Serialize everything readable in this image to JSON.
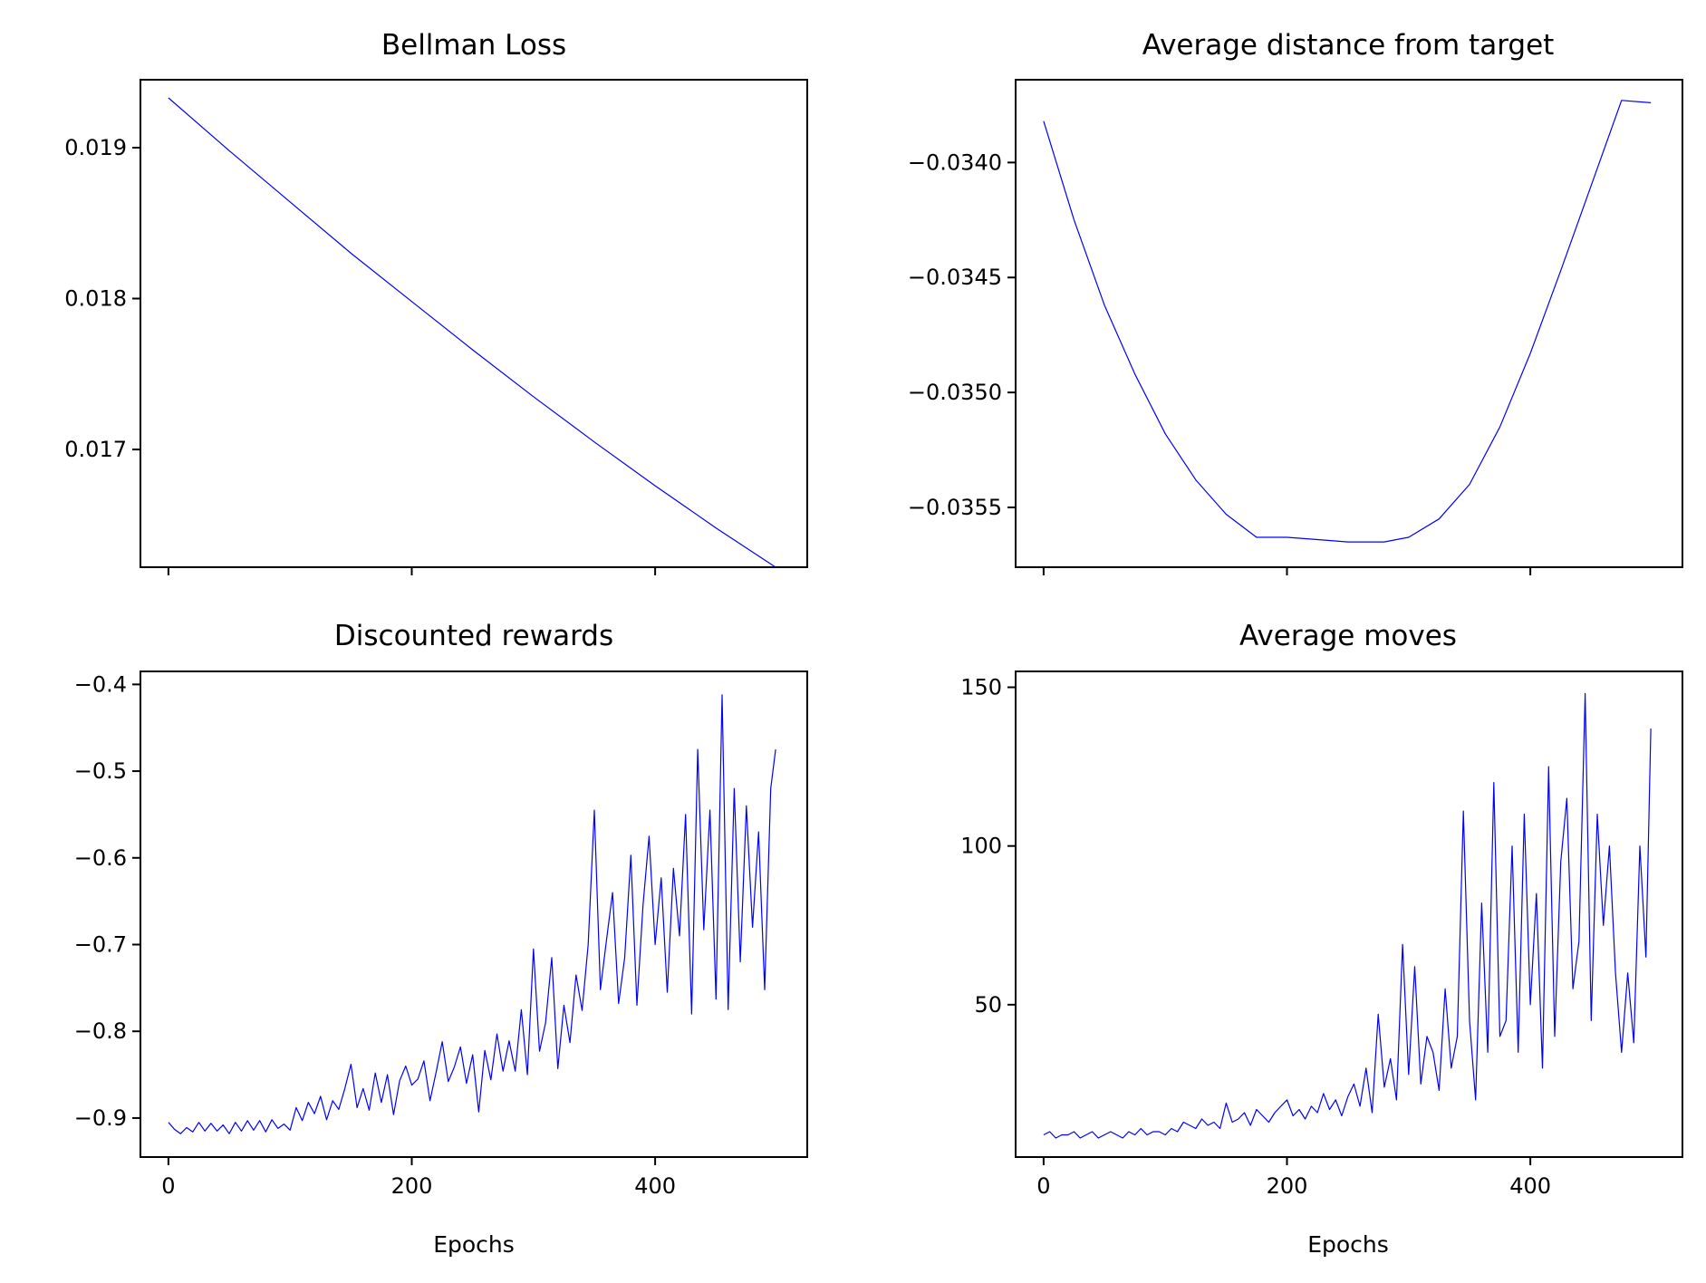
{
  "chart_data": [
    {
      "id": "bellman",
      "type": "line",
      "title": "Bellman Loss",
      "xlabel": "",
      "ylabel": "",
      "xlim": [
        -23,
        525
      ],
      "ylim": [
        0.01622,
        0.01945
      ],
      "xticks": [
        0,
        200,
        400
      ],
      "show_xtick_labels": false,
      "yticks": [
        0.017,
        0.018,
        0.019
      ],
      "ytick_labels": [
        "0.017",
        "0.018",
        "0.019"
      ],
      "color": "#0000ff",
      "grid": false,
      "series": [
        {
          "x": [
            0,
            50,
            100,
            150,
            200,
            250,
            300,
            350,
            400,
            450,
            499
          ],
          "values": [
            0.01933,
            0.01898,
            0.01864,
            0.0183,
            0.01798,
            0.01766,
            0.01735,
            0.01705,
            0.01676,
            0.01648,
            0.01622
          ]
        }
      ]
    },
    {
      "id": "distance",
      "type": "line",
      "title": "Average distance from target",
      "xlabel": "",
      "ylabel": "",
      "xlim": [
        -23,
        525
      ],
      "ylim": [
        -0.03576,
        -0.03364
      ],
      "xticks": [
        0,
        200,
        400
      ],
      "show_xtick_labels": false,
      "yticks": [
        -0.034,
        -0.0345,
        -0.035,
        -0.0355
      ],
      "ytick_labels": [
        "−0.0340",
        "−0.0345",
        "−0.0350",
        "−0.0355"
      ],
      "color": "#0000ff",
      "grid": false,
      "series": [
        {
          "x": [
            0,
            25,
            50,
            75,
            100,
            125,
            150,
            175,
            200,
            225,
            250,
            260,
            270,
            280,
            290,
            300,
            325,
            350,
            375,
            400,
            425,
            450,
            475,
            499
          ],
          "values": [
            -0.03382,
            -0.03425,
            -0.03462,
            -0.03492,
            -0.03518,
            -0.03538,
            -0.03553,
            -0.03563,
            -0.03563,
            -0.03564,
            -0.03565,
            -0.03565,
            -0.03565,
            -0.03565,
            -0.03564,
            -0.03563,
            -0.03555,
            -0.0354,
            -0.03515,
            -0.03483,
            -0.03447,
            -0.0341,
            -0.03373,
            -0.03374
          ]
        }
      ]
    },
    {
      "id": "rewards",
      "type": "line",
      "title": "Discounted rewards",
      "xlabel": "Epochs",
      "ylabel": "",
      "xlim": [
        -23,
        525
      ],
      "ylim": [
        -0.945,
        -0.385
      ],
      "xticks": [
        0,
        200,
        400
      ],
      "xtick_labels": [
        "0",
        "200",
        "400"
      ],
      "show_xtick_labels": true,
      "yticks": [
        -0.4,
        -0.5,
        -0.6,
        -0.7,
        -0.8,
        -0.9
      ],
      "ytick_labels": [
        "−0.4",
        "−0.5",
        "−0.6",
        "−0.7",
        "−0.8",
        "−0.9"
      ],
      "color": "#0000ff",
      "grid": false,
      "series": [
        {
          "x": [
            0,
            5,
            10,
            15,
            20,
            25,
            30,
            35,
            40,
            45,
            50,
            55,
            60,
            65,
            70,
            75,
            80,
            85,
            90,
            95,
            100,
            105,
            110,
            115,
            120,
            125,
            130,
            135,
            140,
            145,
            150,
            155,
            160,
            165,
            170,
            175,
            180,
            185,
            190,
            195,
            200,
            205,
            210,
            215,
            220,
            225,
            230,
            235,
            240,
            245,
            250,
            255,
            260,
            265,
            270,
            275,
            280,
            285,
            290,
            295,
            300,
            305,
            310,
            315,
            320,
            325,
            330,
            335,
            340,
            345,
            350,
            355,
            360,
            365,
            370,
            375,
            380,
            385,
            390,
            395,
            400,
            405,
            410,
            415,
            420,
            425,
            430,
            435,
            440,
            445,
            450,
            455,
            460,
            465,
            470,
            475,
            480,
            485,
            490,
            495,
            499
          ],
          "values": [
            -0.905,
            -0.913,
            -0.918,
            -0.911,
            -0.916,
            -0.905,
            -0.915,
            -0.906,
            -0.915,
            -0.908,
            -0.918,
            -0.905,
            -0.915,
            -0.903,
            -0.914,
            -0.903,
            -0.916,
            -0.902,
            -0.912,
            -0.907,
            -0.914,
            -0.888,
            -0.903,
            -0.882,
            -0.895,
            -0.875,
            -0.902,
            -0.88,
            -0.89,
            -0.866,
            -0.838,
            -0.888,
            -0.866,
            -0.891,
            -0.848,
            -0.882,
            -0.85,
            -0.896,
            -0.857,
            -0.84,
            -0.862,
            -0.855,
            -0.834,
            -0.88,
            -0.847,
            -0.812,
            -0.858,
            -0.841,
            -0.818,
            -0.86,
            -0.827,
            -0.893,
            -0.822,
            -0.856,
            -0.803,
            -0.846,
            -0.811,
            -0.846,
            -0.775,
            -0.85,
            -0.705,
            -0.823,
            -0.79,
            -0.715,
            -0.843,
            -0.77,
            -0.813,
            -0.735,
            -0.776,
            -0.7,
            -0.545,
            -0.752,
            -0.695,
            -0.64,
            -0.768,
            -0.715,
            -0.597,
            -0.77,
            -0.655,
            -0.575,
            -0.7,
            -0.623,
            -0.755,
            -0.612,
            -0.69,
            -0.55,
            -0.78,
            -0.475,
            -0.683,
            -0.545,
            -0.763,
            -0.412,
            -0.775,
            -0.52,
            -0.72,
            -0.54,
            -0.68,
            -0.57,
            -0.752,
            -0.52,
            -0.475
          ]
        }
      ]
    },
    {
      "id": "moves",
      "type": "line",
      "title": "Average moves",
      "xlabel": "Epochs",
      "ylabel": "",
      "xlim": [
        -23,
        525
      ],
      "ylim": [
        2,
        155
      ],
      "xticks": [
        0,
        200,
        400
      ],
      "xtick_labels": [
        "0",
        "200",
        "400"
      ],
      "show_xtick_labels": true,
      "yticks": [
        50,
        100,
        150
      ],
      "ytick_labels": [
        "50",
        "100",
        "150"
      ],
      "color": "#0000ff",
      "grid": false,
      "series": [
        {
          "x": [
            0,
            5,
            10,
            15,
            20,
            25,
            30,
            35,
            40,
            45,
            50,
            55,
            60,
            65,
            70,
            75,
            80,
            85,
            90,
            95,
            100,
            105,
            110,
            115,
            120,
            125,
            130,
            135,
            140,
            145,
            150,
            155,
            160,
            165,
            170,
            175,
            180,
            185,
            190,
            195,
            200,
            205,
            210,
            215,
            220,
            225,
            230,
            235,
            240,
            245,
            250,
            255,
            260,
            265,
            270,
            275,
            280,
            285,
            290,
            295,
            300,
            305,
            310,
            315,
            320,
            325,
            330,
            335,
            340,
            345,
            350,
            355,
            360,
            365,
            370,
            375,
            380,
            385,
            390,
            395,
            400,
            405,
            410,
            415,
            420,
            425,
            430,
            435,
            440,
            445,
            450,
            455,
            460,
            465,
            470,
            475,
            480,
            485,
            490,
            495,
            499
          ],
          "values": [
            9,
            10,
            8,
            9,
            9,
            10,
            8,
            9,
            10,
            8,
            9,
            10,
            9,
            8,
            10,
            9,
            11,
            9,
            10,
            10,
            9,
            11,
            10,
            13,
            12,
            11,
            14,
            12,
            13,
            11,
            19,
            13,
            14,
            16,
            12,
            17,
            15,
            13,
            16,
            18,
            20,
            15,
            17,
            14,
            18,
            16,
            22,
            17,
            20,
            15,
            21,
            25,
            18,
            30,
            16,
            47,
            24,
            33,
            20,
            69,
            28,
            62,
            25,
            40,
            35,
            23,
            55,
            30,
            40,
            111,
            45,
            20,
            82,
            35,
            120,
            40,
            45,
            100,
            35,
            110,
            50,
            85,
            30,
            125,
            40,
            95,
            115,
            55,
            70,
            148,
            45,
            110,
            75,
            100,
            60,
            35,
            60,
            38,
            100,
            65,
            137
          ]
        }
      ]
    }
  ]
}
